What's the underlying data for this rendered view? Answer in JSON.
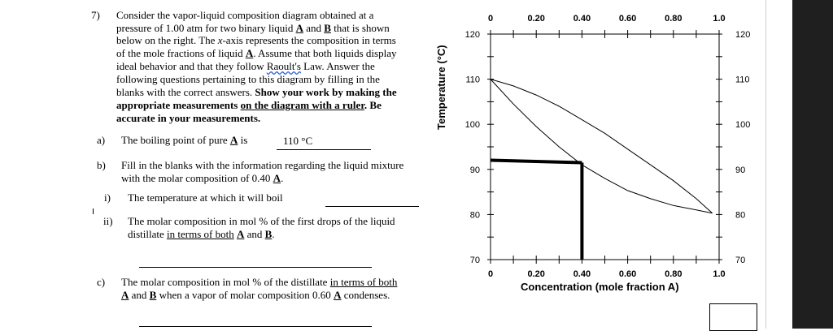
{
  "question": {
    "number": "7)",
    "intro_lines": [
      "Consider the vapor-liquid composition diagram obtained at a",
      "pressure of 1.00 atm for two binary liquid",
      "below on the right.  The",
      "of the mole fractions of liquid",
      "ideal behavior and that they follow",
      "following questions pertaining to this diagram by filling in the",
      "blanks with the correct answers."
    ],
    "intro_A": "A",
    "intro_and": "and",
    "intro_B": "B",
    "intro_that_shown": "that is shown",
    "intro_x_axis": "x",
    "intro_axis_rest": "-axis represents the composition in terms",
    "intro_assume": ".  Assume that both liquids display",
    "intro_raoult": "Raoult's",
    "intro_law": " Law.  Answer the",
    "intro_show_work": "Show your work by making the",
    "intro_appropriate": "appropriate measurements",
    "intro_on_diagram": "on the diagram with a ruler",
    "intro_be": ".  Be",
    "intro_accurate": "accurate in your measurements.",
    "a_label": "a)",
    "a_text": "The boiling point of pure",
    "a_is": "is",
    "a_answer": "110 °C",
    "b_label": "b)",
    "b_line1": "Fill in the blanks with the information regarding the liquid mixture",
    "b_line2": "with the molar composition of 0.40",
    "bi_label": "i)",
    "bi_text": "The temperature at which it will boil",
    "bii_label": "ii)",
    "bii_line1": "The molar composition in mol % of the first drops of the liquid",
    "bii_line2a": "distillate",
    "bii_line2b": "in terms of both",
    "bii_and": "and",
    "c_label": "c)",
    "c_line1a": "The molar composition in mol % of the distillate",
    "c_line1b": "in terms of both",
    "c_line2b": "when a vapor of molar composition 0.60",
    "c_line2c": "condenses.",
    "letter_A": "A",
    "letter_B": "B",
    "period": "."
  },
  "chart_data": {
    "type": "line",
    "title": "",
    "xlabel": "Concentration (mole fraction A)",
    "ylabel": "Temperature (°C)",
    "xlim": [
      0,
      1.0
    ],
    "ylim": [
      70,
      120
    ],
    "x_ticks": [
      "0",
      "0.20",
      "0.40",
      "0.60",
      "0.80",
      "1.0"
    ],
    "y_ticks": [
      "120",
      "110",
      "100",
      "90",
      "80",
      "70"
    ],
    "series": [
      {
        "x": [
          0,
          0.1,
          0.2,
          0.3,
          0.4,
          0.5,
          0.6,
          0.7,
          0.8,
          0.9,
          0.97
        ],
        "y": [
          110,
          104.5,
          99.5,
          95,
          91,
          88,
          85.3,
          83.5,
          82,
          81,
          80.3
        ]
      },
      {
        "x": [
          0,
          0.1,
          0.2,
          0.3,
          0.4,
          0.5,
          0.6,
          0.7,
          0.8,
          0.9,
          0.97
        ],
        "y": [
          110,
          108.5,
          106.5,
          104,
          101,
          98,
          94.5,
          91,
          87.5,
          83.5,
          80.3
        ]
      }
    ],
    "annotation": {
      "x": 0.4,
      "y": 91.5
    }
  }
}
